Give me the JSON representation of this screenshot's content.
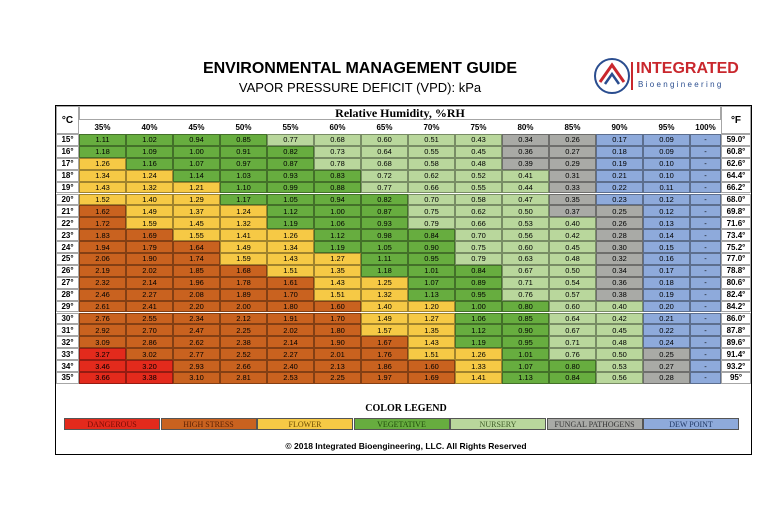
{
  "header": {
    "title": "ENVIRONMENTAL MANAGEMENT GUIDE",
    "subtitle": "VAPOR PRESSURE DEFICIT (VPD): kPa",
    "logo": {
      "name": "INTEGRATED",
      "sub": "Bioengineering"
    }
  },
  "table": {
    "left_header": "°C",
    "right_header": "°F",
    "group_header": "Relative Humidity, %RH",
    "columns": [
      "35%",
      "40%",
      "45%",
      "50%",
      "55%",
      "60%",
      "65%",
      "70%",
      "75%",
      "80%",
      "85%",
      "90%",
      "95%",
      "100%"
    ],
    "rows": [
      {
        "c": "15°",
        "values": [
          "1.11",
          "1.02",
          "0.94",
          "0.85",
          "0.77",
          "0.68",
          "0.60",
          "0.51",
          "0.43",
          "0.34",
          "0.26",
          "0.17",
          "0.09",
          "-"
        ],
        "f": "59.0°"
      },
      {
        "c": "16°",
        "values": [
          "1.18",
          "1.09",
          "1.00",
          "0.91",
          "0.82",
          "0.73",
          "0.64",
          "0.55",
          "0.45",
          "0.36",
          "0.27",
          "0.18",
          "0.09",
          "-"
        ],
        "f": "60.8°"
      },
      {
        "c": "17°",
        "values": [
          "1.26",
          "1.16",
          "1.07",
          "0.97",
          "0.87",
          "0.78",
          "0.68",
          "0.58",
          "0.48",
          "0.39",
          "0.29",
          "0.19",
          "0.10",
          "-"
        ],
        "f": "62.6°"
      },
      {
        "c": "18°",
        "values": [
          "1.34",
          "1.24",
          "1.14",
          "1.03",
          "0.93",
          "0.83",
          "0.72",
          "0.62",
          "0.52",
          "0.41",
          "0.31",
          "0.21",
          "0.10",
          "-"
        ],
        "f": "64.4°"
      },
      {
        "c": "19°",
        "values": [
          "1.43",
          "1.32",
          "1.21",
          "1.10",
          "0.99",
          "0.88",
          "0.77",
          "0.66",
          "0.55",
          "0.44",
          "0.33",
          "0.22",
          "0.11",
          "-"
        ],
        "f": "66.2°"
      },
      {
        "c": "20°",
        "values": [
          "1.52",
          "1.40",
          "1.29",
          "1.17",
          "1.05",
          "0.94",
          "0.82",
          "0.70",
          "0.58",
          "0.47",
          "0.35",
          "0.23",
          "0.12",
          "-"
        ],
        "f": "68.0°"
      },
      {
        "c": "21°",
        "values": [
          "1.62",
          "1.49",
          "1.37",
          "1.24",
          "1.12",
          "1.00",
          "0.87",
          "0.75",
          "0.62",
          "0.50",
          "0.37",
          "0.25",
          "0.12",
          "-"
        ],
        "f": "69.8°"
      },
      {
        "c": "22°",
        "values": [
          "1.72",
          "1.59",
          "1.45",
          "1.32",
          "1.19",
          "1.06",
          "0.93",
          "0.79",
          "0.66",
          "0.53",
          "0.40",
          "0.26",
          "0.13",
          "-"
        ],
        "f": "71.6°"
      },
      {
        "c": "23°",
        "values": [
          "1.83",
          "1.69",
          "1.55",
          "1.41",
          "1.26",
          "1.12",
          "0.98",
          "0.84",
          "0.70",
          "0.56",
          "0.42",
          "0.28",
          "0.14",
          "-"
        ],
        "f": "73.4°"
      },
      {
        "c": "24°",
        "values": [
          "1.94",
          "1.79",
          "1.64",
          "1.49",
          "1.34",
          "1.19",
          "1.05",
          "0.90",
          "0.75",
          "0.60",
          "0.45",
          "0.30",
          "0.15",
          "-"
        ],
        "f": "75.2°"
      },
      {
        "c": "25°",
        "values": [
          "2.06",
          "1.90",
          "1.74",
          "1.59",
          "1.43",
          "1.27",
          "1.11",
          "0.95",
          "0.79",
          "0.63",
          "0.48",
          "0.32",
          "0.16",
          "-"
        ],
        "f": "77.0°"
      },
      {
        "c": "26°",
        "values": [
          "2.19",
          "2.02",
          "1.85",
          "1.68",
          "1.51",
          "1.35",
          "1.18",
          "1.01",
          "0.84",
          "0.67",
          "0.50",
          "0.34",
          "0.17",
          "-"
        ],
        "f": "78.8°"
      },
      {
        "c": "27°",
        "values": [
          "2.32",
          "2.14",
          "1.96",
          "1.78",
          "1.61",
          "1.43",
          "1.25",
          "1.07",
          "0.89",
          "0.71",
          "0.54",
          "0.36",
          "0.18",
          "-"
        ],
        "f": "80.6°"
      },
      {
        "c": "28°",
        "values": [
          "2.46",
          "2.27",
          "2.08",
          "1.89",
          "1.70",
          "1.51",
          "1.32",
          "1.13",
          "0.95",
          "0.76",
          "0.57",
          "0.38",
          "0.19",
          "-"
        ],
        "f": "82.4°"
      },
      {
        "c": "29°",
        "values": [
          "2.61",
          "2.41",
          "2.20",
          "2.00",
          "1.80",
          "1.60",
          "1.40",
          "1.20",
          "1.00",
          "0.80",
          "0.60",
          "0.40",
          "0.20",
          "-"
        ],
        "f": "84.2°"
      },
      {
        "c": "30°",
        "values": [
          "2.76",
          "2.55",
          "2.34",
          "2.12",
          "1.91",
          "1.70",
          "1.49",
          "1.27",
          "1.06",
          "0.85",
          "0.64",
          "0.42",
          "0.21",
          "-"
        ],
        "f": "86.0°"
      },
      {
        "c": "31°",
        "values": [
          "2.92",
          "2.70",
          "2.47",
          "2.25",
          "2.02",
          "1.80",
          "1.57",
          "1.35",
          "1.12",
          "0.90",
          "0.67",
          "0.45",
          "0.22",
          "-"
        ],
        "f": "87.8°"
      },
      {
        "c": "32°",
        "values": [
          "3.09",
          "2.86",
          "2.62",
          "2.38",
          "2.14",
          "1.90",
          "1.67",
          "1.43",
          "1.19",
          "0.95",
          "0.71",
          "0.48",
          "0.24",
          "-"
        ],
        "f": "89.6°"
      },
      {
        "c": "33°",
        "values": [
          "3.27",
          "3.02",
          "2.77",
          "2.52",
          "2.27",
          "2.01",
          "1.76",
          "1.51",
          "1.26",
          "1.01",
          "0.76",
          "0.50",
          "0.25",
          "-"
        ],
        "f": "91.4°"
      },
      {
        "c": "34°",
        "values": [
          "3.46",
          "3.20",
          "2.93",
          "2.66",
          "2.40",
          "2.13",
          "1.86",
          "1.60",
          "1.33",
          "1.07",
          "0.80",
          "0.53",
          "0.27",
          "-"
        ],
        "f": "93.2°"
      },
      {
        "c": "35°",
        "values": [
          "3.66",
          "3.38",
          "3.10",
          "2.81",
          "2.53",
          "2.25",
          "1.97",
          "1.69",
          "1.41",
          "1.13",
          "0.84",
          "0.56",
          "0.28",
          "-"
        ],
        "f": "95°"
      }
    ]
  },
  "legend": {
    "title": "COLOR LEGEND",
    "items": [
      {
        "label": "DANGEROUS",
        "color": "#e32a1c",
        "text_color": "#7a0b05"
      },
      {
        "label": "HIGH STRESS",
        "color": "#c9621f",
        "text_color": "#5c2104"
      },
      {
        "label": "FLOWER",
        "color": "#f6c945",
        "text_color": "#6b4a00"
      },
      {
        "label": "VEGETATIVE",
        "color": "#67ad3f",
        "text_color": "#1f4a0b"
      },
      {
        "label": "NURSERY",
        "color": "#b9d79c",
        "text_color": "#3d5a27"
      },
      {
        "label": "FUNGAL PATHOGENS",
        "color": "#a9aaa6",
        "text_color": "#333333"
      },
      {
        "label": "DEW POINT",
        "color": "#8eaadb",
        "text_color": "#203864"
      }
    ]
  },
  "footer": "© 2018 Integrated Bioengineering, LLC. All Rights Reserved"
}
